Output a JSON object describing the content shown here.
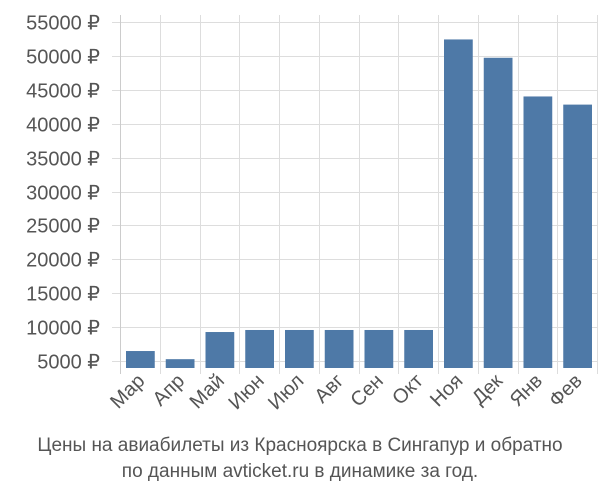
{
  "chart_data": {
    "type": "bar",
    "categories": [
      "Мар",
      "Апр",
      "Май",
      "Июн",
      "Июл",
      "Авг",
      "Сен",
      "Окт",
      "Ноя",
      "Дек",
      "Янв",
      "Фев"
    ],
    "values": [
      6500,
      5300,
      9300,
      9600,
      9600,
      9600,
      9600,
      9600,
      52400,
      49700,
      44000,
      42800
    ],
    "ylim": [
      4000,
      56000
    ],
    "yticks": [
      5000,
      10000,
      15000,
      20000,
      25000,
      30000,
      35000,
      40000,
      45000,
      50000,
      55000
    ],
    "ytick_labels": [
      "5000 ₽",
      "10000 ₽",
      "15000 ₽",
      "20000 ₽",
      "25000 ₽",
      "30000 ₽",
      "35000 ₽",
      "40000 ₽",
      "45000 ₽",
      "50000 ₽",
      "55000 ₽"
    ],
    "bar_color": "#4e79a7",
    "grid": true,
    "xlabel": "",
    "ylabel": ""
  },
  "caption": {
    "line1": "Цены на авиабилеты из Красноярска в Сингапур и обратно",
    "line2": "по данным avticket.ru в динамике за год."
  }
}
